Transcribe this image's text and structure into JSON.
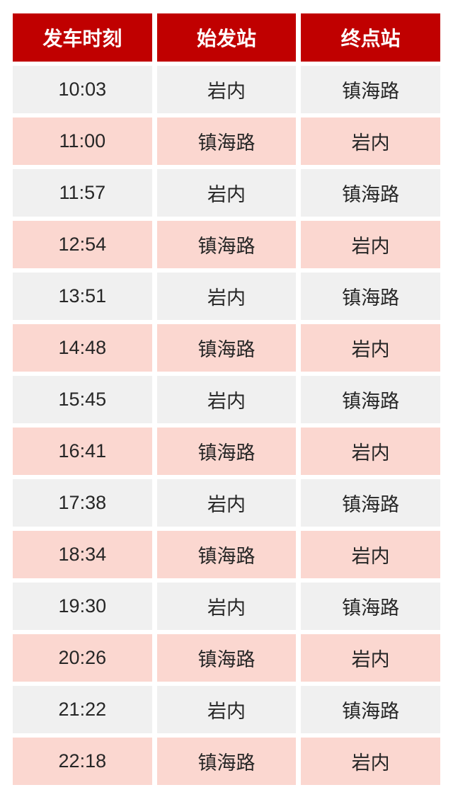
{
  "chart_data": {
    "type": "table",
    "columns": [
      "发车时刻",
      "始发站",
      "终点站"
    ],
    "rows": [
      [
        "10:03",
        "岩内",
        "镇海路"
      ],
      [
        "11:00",
        "镇海路",
        "岩内"
      ],
      [
        "11:57",
        "岩内",
        "镇海路"
      ],
      [
        "12:54",
        "镇海路",
        "岩内"
      ],
      [
        "13:51",
        "岩内",
        "镇海路"
      ],
      [
        "14:48",
        "镇海路",
        "岩内"
      ],
      [
        "15:45",
        "岩内",
        "镇海路"
      ],
      [
        "16:41",
        "镇海路",
        "岩内"
      ],
      [
        "17:38",
        "岩内",
        "镇海路"
      ],
      [
        "18:34",
        "镇海路",
        "岩内"
      ],
      [
        "19:30",
        "岩内",
        "镇海路"
      ],
      [
        "20:26",
        "镇海路",
        "岩内"
      ],
      [
        "21:22",
        "岩内",
        "镇海路"
      ],
      [
        "22:18",
        "镇海路",
        "岩内"
      ]
    ],
    "colors": {
      "header_bg": "#C00000",
      "header_text": "#FFFFFF",
      "row_alt_gray": "#F0F0F0",
      "row_alt_pink": "#FBD7D0",
      "cell_text": "#262626",
      "page_bg": "#FFFFFF"
    },
    "layout_hints": {
      "striping": "odd rows gray, even rows pink",
      "grid": "white gaps between all cells"
    }
  }
}
